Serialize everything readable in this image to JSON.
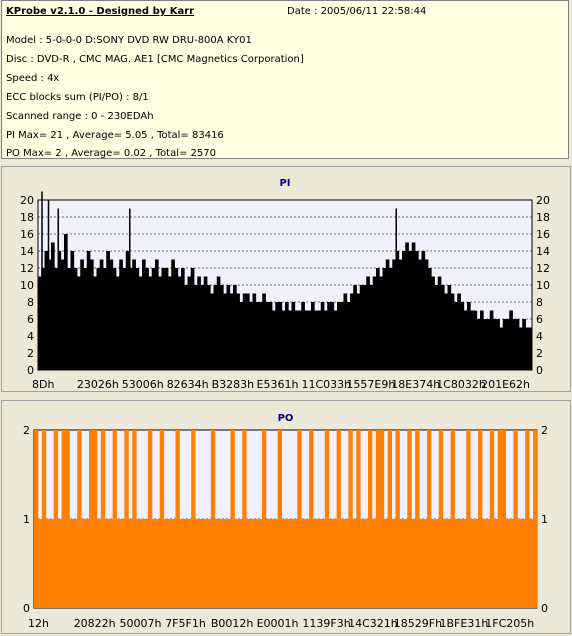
{
  "header": {
    "title": "KProbe v2.1.0 - Designed by Karr",
    "date": "Date : 2005/06/11 22:58:44",
    "lines": [
      "Model : 5-0-0-0 D:SONY    DVD RW DRU-800A  KY01",
      "Disc : DVD-R , CMC MAG. AE1 [CMC Magnetics Corporation]",
      "Speed : 4x",
      "ECC blocks sum (PI/PO) : 8/1",
      "Scanned range : 0 - 230EDAh",
      "PI Max= 21 , Average= 5.05 , Total= 83416",
      "PO Max= 2 , Average= 0.02 , Total= 2570"
    ]
  },
  "colors": {
    "pi_bar": "#000000",
    "po_bar": "#ff7f00",
    "plot_bg": "#f0f0ff",
    "panel_bg": "#ece9d8",
    "info_bg": "#ffffe1",
    "title_color": "#000080"
  },
  "chart_data": [
    {
      "type": "bar",
      "title": "PI",
      "ylim": [
        0,
        20
      ],
      "yticks": [
        0,
        2,
        4,
        6,
        8,
        10,
        12,
        14,
        16,
        18,
        20
      ],
      "grid": true,
      "xticks": [
        "8Dh",
        "23026h",
        "53006h",
        "82634h",
        "B3283h",
        "E5361h",
        "11C033h",
        "1557E9h",
        "18E374h",
        "1C8032h",
        "201E62h"
      ],
      "x_range_hex": [
        "0h",
        "230EDAh"
      ],
      "values": [
        11,
        12,
        14,
        13,
        15,
        12,
        14,
        13,
        16,
        12,
        14,
        12,
        11,
        13,
        12,
        14,
        13,
        11,
        12,
        13,
        12,
        14,
        13,
        12,
        11,
        13,
        12,
        14,
        12,
        13,
        12,
        11,
        13,
        12,
        11,
        12,
        13,
        11,
        12,
        12,
        11,
        13,
        12,
        11,
        12,
        10,
        11,
        12,
        10,
        11,
        10,
        11,
        10,
        9,
        10,
        11,
        10,
        9,
        10,
        9,
        10,
        9,
        8,
        9,
        9,
        8,
        9,
        8,
        8,
        9,
        8,
        8,
        7,
        8,
        8,
        7,
        8,
        7,
        8,
        7,
        7,
        8,
        7,
        7,
        8,
        7,
        7,
        8,
        7,
        8,
        8,
        7,
        8,
        8,
        9,
        8,
        9,
        10,
        9,
        10,
        10,
        11,
        10,
        11,
        12,
        11,
        12,
        13,
        12,
        13,
        14,
        13,
        14,
        15,
        14,
        15,
        14,
        13,
        14,
        13,
        12,
        11,
        10,
        11,
        10,
        9,
        10,
        9,
        8,
        9,
        8,
        7,
        8,
        7,
        7,
        6,
        7,
        6,
        6,
        7,
        6,
        6,
        5,
        6,
        6,
        7,
        6,
        6,
        5,
        6,
        5,
        5
      ],
      "peaks": [
        [
          1,
          21
        ],
        [
          3,
          20
        ],
        [
          6,
          19
        ],
        [
          28,
          19
        ],
        [
          110,
          19
        ]
      ]
    },
    {
      "type": "bar",
      "title": "PO",
      "ylim": [
        0,
        2
      ],
      "yticks": [
        0,
        1,
        2
      ],
      "grid": true,
      "xticks": [
        "12h",
        "20822h",
        "50007h",
        "7F5F1h",
        "B0012h",
        "E0001h",
        "1139F3h",
        "14C321h",
        "18529Fh",
        "1BFE31h",
        "1FC205h"
      ],
      "x_range_hex": [
        "0h",
        "230EDAh"
      ],
      "values": [
        2,
        1,
        2,
        1,
        1,
        2,
        1,
        2,
        2,
        1,
        1,
        2,
        1,
        1,
        2,
        2,
        1,
        2,
        1,
        1,
        2,
        1,
        1,
        2,
        1,
        2,
        1,
        1,
        1,
        2,
        1,
        1,
        2,
        1,
        1,
        1,
        2,
        1,
        1,
        1,
        2,
        1,
        1,
        1,
        1,
        2,
        1,
        1,
        1,
        1,
        2,
        1,
        1,
        2,
        1,
        1,
        1,
        1,
        2,
        1,
        1,
        1,
        2,
        1,
        1,
        1,
        1,
        2,
        1,
        1,
        2,
        1,
        1,
        1,
        2,
        1,
        1,
        2,
        1,
        1,
        2,
        1,
        2,
        1,
        1,
        2,
        1,
        2,
        2,
        1,
        2,
        1,
        2,
        1,
        1,
        2,
        1,
        2,
        1,
        1,
        2,
        1,
        1,
        2,
        1,
        1,
        2,
        1,
        1,
        1,
        2,
        1,
        1,
        2,
        1,
        1,
        2,
        1,
        2,
        2,
        1,
        1,
        2,
        1,
        1,
        2,
        1,
        2
      ]
    }
  ]
}
